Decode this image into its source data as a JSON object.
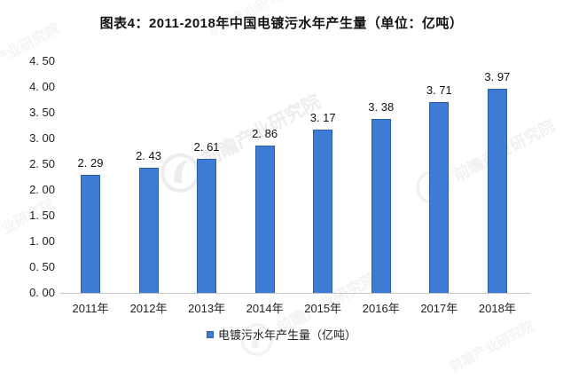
{
  "title": "图表4：2011-2018年中国电镀污水年产生量（单位：亿吨）",
  "legend": {
    "label": "电镀污水年产生量（亿吨）"
  },
  "watermark": {
    "text": "前瞻产业研究院",
    "logo_name": "qianzhan-circle-logo"
  },
  "colors": {
    "bar_fill": "#3E7BD5",
    "bar_border": "#2D5FA8",
    "axis_line": "#C6C6C6",
    "text": "#1A1A1A",
    "watermark": "#8F8F8F"
  },
  "chart_data": {
    "type": "bar",
    "title": "图表4：2011-2018年中国电镀污水年产生量（单位：亿吨）",
    "categories": [
      "2011年",
      "2012年",
      "2013年",
      "2014年",
      "2015年",
      "2016年",
      "2017年",
      "2018年"
    ],
    "values": [
      2.29,
      2.43,
      2.61,
      2.86,
      3.17,
      3.38,
      3.71,
      3.97
    ],
    "value_labels": [
      "2. 29",
      "2. 43",
      "2. 61",
      "2. 86",
      "3. 17",
      "3. 38",
      "3. 71",
      "3. 97"
    ],
    "series_name": "电镀污水年产生量（亿吨）",
    "xlabel": "",
    "ylabel": "",
    "ylim": [
      0,
      4.5
    ],
    "y_tick_values": [
      0,
      0.5,
      1.0,
      1.5,
      2.0,
      2.5,
      3.0,
      3.5,
      4.0,
      4.5
    ],
    "y_tick_labels": [
      "0. 00",
      "0. 50",
      "1. 00",
      "1. 50",
      "2. 00",
      "2. 50",
      "3. 00",
      "3. 50",
      "4. 00",
      "4. 50"
    ],
    "grid": false,
    "legend_position": "bottom",
    "data_labels": true
  }
}
